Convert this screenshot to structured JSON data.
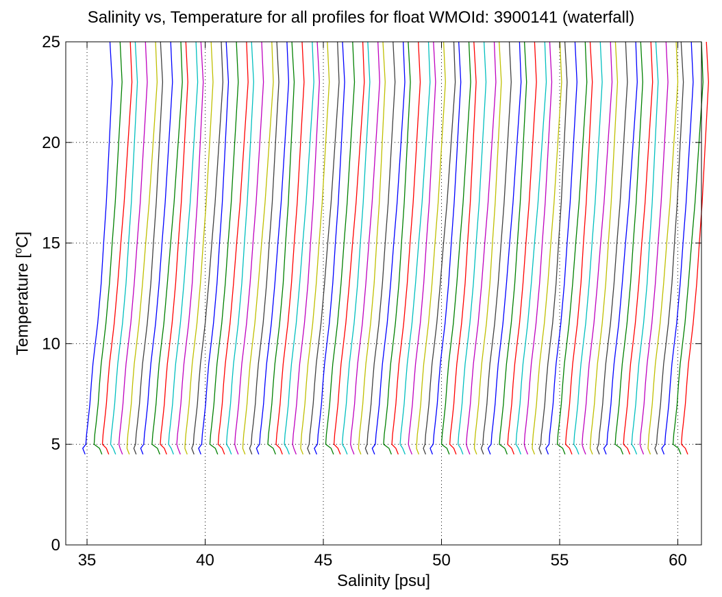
{
  "chart_data": {
    "type": "line",
    "title": "Salinity vs, Temperature for all profiles for float WMOId: 3900141 (waterfall)",
    "xlabel": "Salinity [psu]",
    "ylabel": {
      "prefix": "Temperature [",
      "sup": "o",
      "suffix": "C]"
    },
    "xlim": [
      34.1,
      61.0
    ],
    "ylim": [
      0,
      25
    ],
    "xticks": [
      35,
      40,
      45,
      50,
      55,
      60
    ],
    "yticks": [
      0,
      5,
      10,
      15,
      20,
      25
    ],
    "grid": true,
    "grid_style": "dotted",
    "color_cycle": [
      "#0000ff",
      "#008000",
      "#ff0000",
      "#00bfbf",
      "#bf00bf",
      "#bfbf00",
      "#404040"
    ],
    "profile_count": 73,
    "offset_per_profile": 0.35,
    "base_profile": {
      "salinity": [
        36.07,
        36.15,
        36.05,
        35.95,
        35.85,
        35.72,
        35.6,
        35.45,
        35.35,
        35.25,
        35.18,
        35.12,
        35.03,
        34.98,
        34.95,
        35.0,
        35.1
      ],
      "temperature": [
        25,
        23,
        21,
        19,
        17,
        15,
        13,
        11,
        10,
        9,
        8,
        7,
        6,
        5.5,
        5.0,
        4.8,
        4.5
      ]
    }
  }
}
